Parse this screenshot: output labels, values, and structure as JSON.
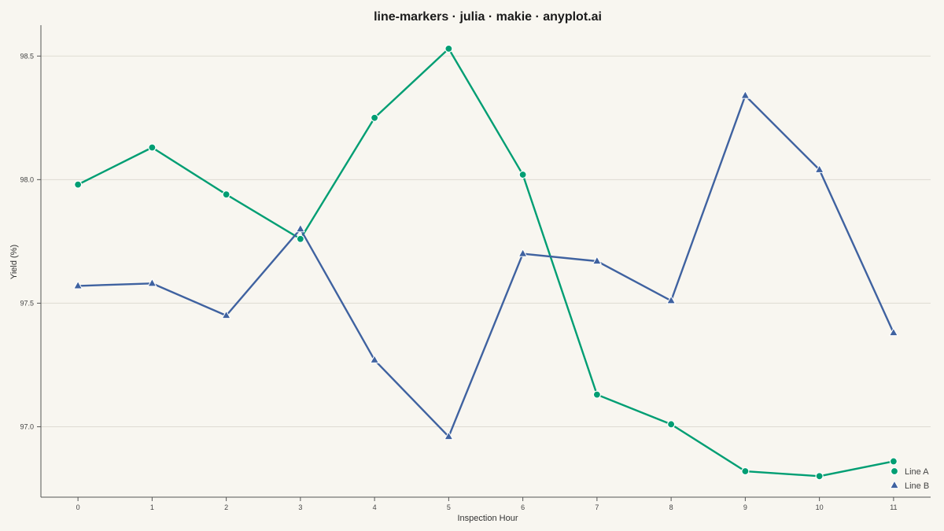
{
  "chart_data": {
    "type": "line",
    "title": "line-markers · julia · makie · anyplot.ai",
    "xlabel": "Inspection Hour",
    "ylabel": "Yield (%)",
    "x": [
      0,
      1,
      2,
      3,
      4,
      5,
      6,
      7,
      8,
      9,
      10,
      11
    ],
    "xlim": [
      -0.5,
      11.5
    ],
    "ylim": [
      96.715,
      98.625
    ],
    "yticks": [
      97.0,
      97.5,
      98.0,
      98.5
    ],
    "grid": "horizontal",
    "legend_position": "bottom-right",
    "series": [
      {
        "name": "Line A",
        "color": "#009E73",
        "marker": "circle",
        "values": [
          97.98,
          98.13,
          97.94,
          97.76,
          98.25,
          98.53,
          98.02,
          97.13,
          97.01,
          96.82,
          96.8,
          96.86
        ]
      },
      {
        "name": "Line B",
        "color": "#3F62A0",
        "marker": "triangle",
        "values": [
          97.57,
          97.58,
          97.45,
          97.8,
          97.27,
          96.96,
          97.7,
          97.67,
          97.51,
          98.34,
          98.04,
          97.38
        ]
      }
    ]
  }
}
